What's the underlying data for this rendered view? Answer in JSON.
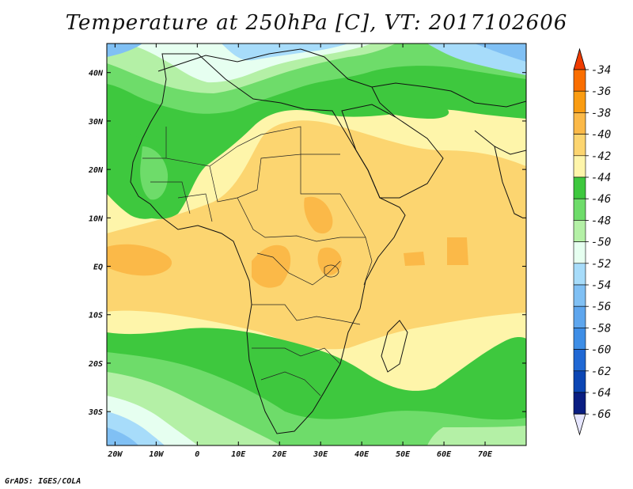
{
  "title": "Temperature at 250hPa [C], VT: 2017102606",
  "footer": "GrADS: IGES/COLA",
  "map": {
    "lon_range": [
      -22,
      80
    ],
    "lat_range": [
      -37,
      46
    ],
    "lon_ticks": [
      {
        "v": -20,
        "label": "20W"
      },
      {
        "v": -10,
        "label": "10W"
      },
      {
        "v": 0,
        "label": "0"
      },
      {
        "v": 10,
        "label": "10E"
      },
      {
        "v": 20,
        "label": "20E"
      },
      {
        "v": 30,
        "label": "30E"
      },
      {
        "v": 40,
        "label": "40E"
      },
      {
        "v": 50,
        "label": "50E"
      },
      {
        "v": 60,
        "label": "60E"
      },
      {
        "v": 70,
        "label": "70E"
      }
    ],
    "lat_ticks": [
      {
        "v": 40,
        "label": "40N"
      },
      {
        "v": 30,
        "label": "30N"
      },
      {
        "v": 20,
        "label": "20N"
      },
      {
        "v": 10,
        "label": "10N"
      },
      {
        "v": 0,
        "label": "EQ"
      },
      {
        "v": -10,
        "label": "10S"
      },
      {
        "v": -20,
        "label": "20S"
      },
      {
        "v": -30,
        "label": "30S"
      }
    ]
  },
  "colorbar": {
    "labels": [
      "-34",
      "-36",
      "-38",
      "-40",
      "-42",
      "-44",
      "-46",
      "-48",
      "-50",
      "-52",
      "-54",
      "-56",
      "-58",
      "-60",
      "-62",
      "-64",
      "-66"
    ],
    "colors": {
      "top_arrow": "#f03c00",
      "bins": [
        "#fa6e00",
        "#fa9c12",
        "#fbb948",
        "#fcd570",
        "#fef5aa",
        "#3ec83e",
        "#6edc6a",
        "#b4f0a6",
        "#e6fff0",
        "#a7dcfa",
        "#80c0f4",
        "#5ea6ee",
        "#3e8ee6",
        "#2068d4",
        "#0c46b4",
        "#0a1e82"
      ],
      "bottom_arrow": "#e6e6ff"
    }
  }
}
